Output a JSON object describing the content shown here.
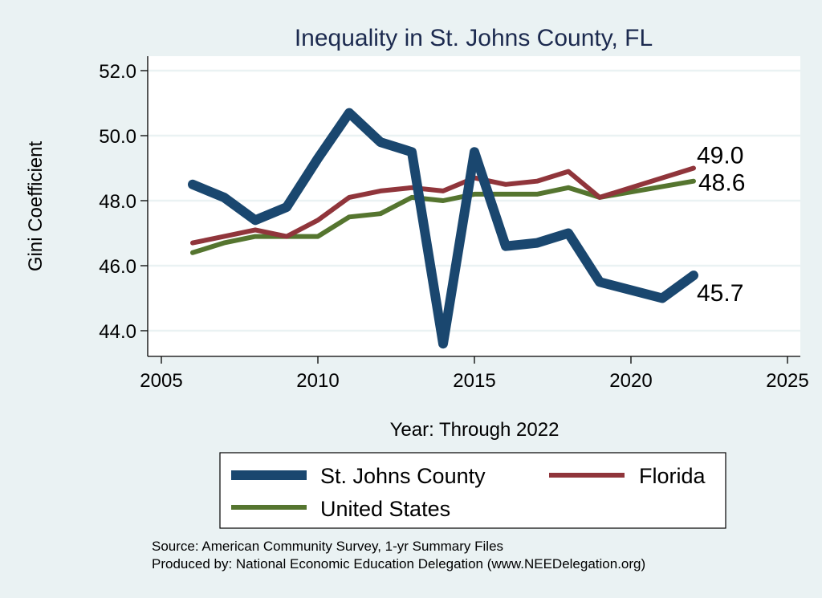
{
  "chart_data": {
    "type": "line",
    "title": "Inequality in St. Johns County, FL",
    "xlabel": "Year: Through 2022",
    "ylabel": "Gini Coefficient",
    "xlim": [
      2005,
      2025
    ],
    "ylim": [
      43.5,
      52.5
    ],
    "x_ticks": [
      2005,
      2010,
      2015,
      2020,
      2025
    ],
    "x_tick_labels": [
      "2005",
      "2010",
      "2015",
      "2020",
      "2025"
    ],
    "y_ticks": [
      44,
      46,
      48,
      50,
      52
    ],
    "y_tick_labels": [
      "44.0",
      "46.0",
      "48.0",
      "50.0",
      "52.0"
    ],
    "grid": true,
    "legend_position": "bottom",
    "series": [
      {
        "name": "St. Johns County",
        "color": "#1a476f",
        "x": [
          2006,
          2007,
          2008,
          2009,
          2010,
          2011,
          2012,
          2013,
          2014,
          2015,
          2016,
          2017,
          2018,
          2019,
          2021,
          2022
        ],
        "values": [
          48.5,
          48.1,
          47.4,
          47.8,
          49.3,
          50.7,
          49.8,
          49.5,
          43.6,
          49.5,
          46.6,
          46.7,
          47.0,
          45.5,
          45.0,
          45.7
        ],
        "end_label": "45.7"
      },
      {
        "name": "Florida",
        "color": "#90353b",
        "x": [
          2006,
          2007,
          2008,
          2009,
          2010,
          2011,
          2012,
          2013,
          2014,
          2015,
          2016,
          2017,
          2018,
          2019,
          2022
        ],
        "values": [
          46.7,
          46.9,
          47.1,
          46.9,
          47.4,
          48.1,
          48.3,
          48.4,
          48.3,
          48.7,
          48.5,
          48.6,
          48.9,
          48.1,
          49.0
        ],
        "end_label": "49.0"
      },
      {
        "name": "United States",
        "color": "#55752f",
        "x": [
          2006,
          2007,
          2008,
          2009,
          2010,
          2011,
          2012,
          2013,
          2014,
          2015,
          2016,
          2017,
          2018,
          2019,
          2022
        ],
        "values": [
          46.4,
          46.7,
          46.9,
          46.9,
          46.9,
          47.5,
          47.6,
          48.1,
          48.0,
          48.2,
          48.2,
          48.2,
          48.4,
          48.1,
          48.6
        ],
        "end_label": "48.6"
      }
    ],
    "notes": [
      "Source: American Community Survey, 1-yr Summary Files",
      "Produced by: National Economic Education Delegation (www.NEEDelegation.org)"
    ]
  }
}
